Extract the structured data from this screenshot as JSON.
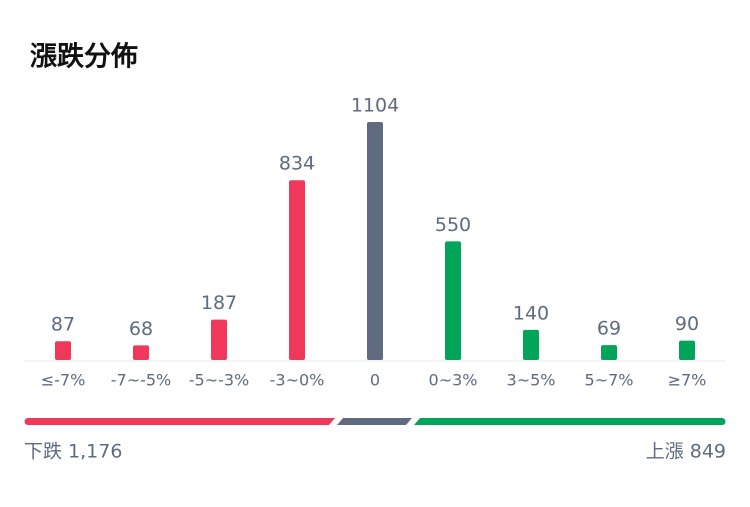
{
  "chart_data": {
    "type": "bar",
    "title": "漲跌分佈",
    "categories": [
      "≤-7%",
      "-7~-5%",
      "-5~-3%",
      "-3~0%",
      "0",
      "0~3%",
      "3~5%",
      "5~7%",
      "≥7%"
    ],
    "values": [
      87,
      68,
      187,
      834,
      1104,
      550,
      140,
      69,
      90
    ],
    "colors": [
      "#f0385a",
      "#f0385a",
      "#f0385a",
      "#f0385a",
      "#5f6b7f",
      "#00a55a",
      "#00a55a",
      "#00a55a",
      "#00a55a"
    ],
    "summary_left": "下跌 1,176",
    "summary_right": "上漲 849"
  }
}
